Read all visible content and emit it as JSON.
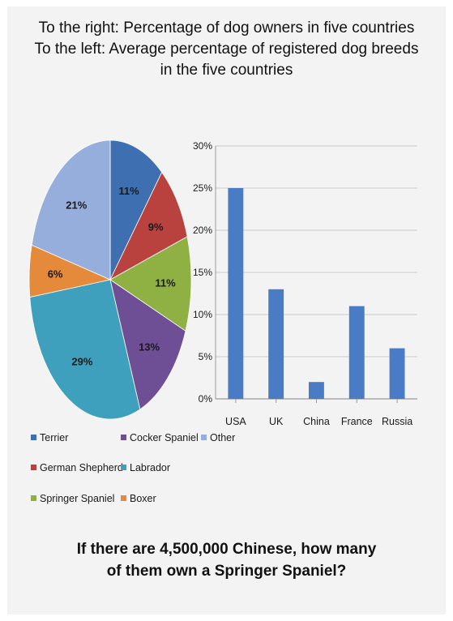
{
  "header": {
    "title_line1": "To the right: Percentage of dog owners in five countries",
    "title_line2": "To the left: Average percentage of registered dog breeds",
    "title_line3": "in the five countries"
  },
  "question": {
    "line1": "If there are 4,500,000 Chinese, how many",
    "line2": "of them own a Springer Spaniel?"
  },
  "chart_data": [
    {
      "type": "pie",
      "labels": [
        "Terrier",
        "German Shepherd",
        "Springer Spaniel",
        "Cocker Spaniel",
        "Labrador",
        "Boxer",
        "Other"
      ],
      "values": [
        11,
        9,
        11,
        13,
        29,
        6,
        21
      ],
      "value_labels": [
        "11%",
        "9%",
        "11%",
        "13%",
        "29%",
        "6%",
        "21%"
      ],
      "colors": [
        "#3e6fb0",
        "#b9423e",
        "#8fb043",
        "#6e4e95",
        "#3ea0bc",
        "#e48a3a",
        "#96aedb"
      ],
      "legend": {
        "placement": "bottom",
        "rows": [
          [
            "Terrier",
            "Cocker Spaniel",
            "Other"
          ],
          [
            "German Shepherd",
            "Labrador"
          ],
          [
            "Springer Spaniel",
            "Boxer"
          ]
        ]
      }
    },
    {
      "type": "bar",
      "categories": [
        "USA",
        "UK",
        "China",
        "France",
        "Russia"
      ],
      "values": [
        25,
        13,
        2,
        11,
        6
      ],
      "ylim": [
        0,
        30
      ],
      "yticks": [
        0,
        5,
        10,
        15,
        20,
        25,
        30
      ],
      "ytick_labels": [
        "0%",
        "5%",
        "10%",
        "15%",
        "20%",
        "25%",
        "30%"
      ],
      "grid": true,
      "color": "#4a7cc6"
    }
  ]
}
